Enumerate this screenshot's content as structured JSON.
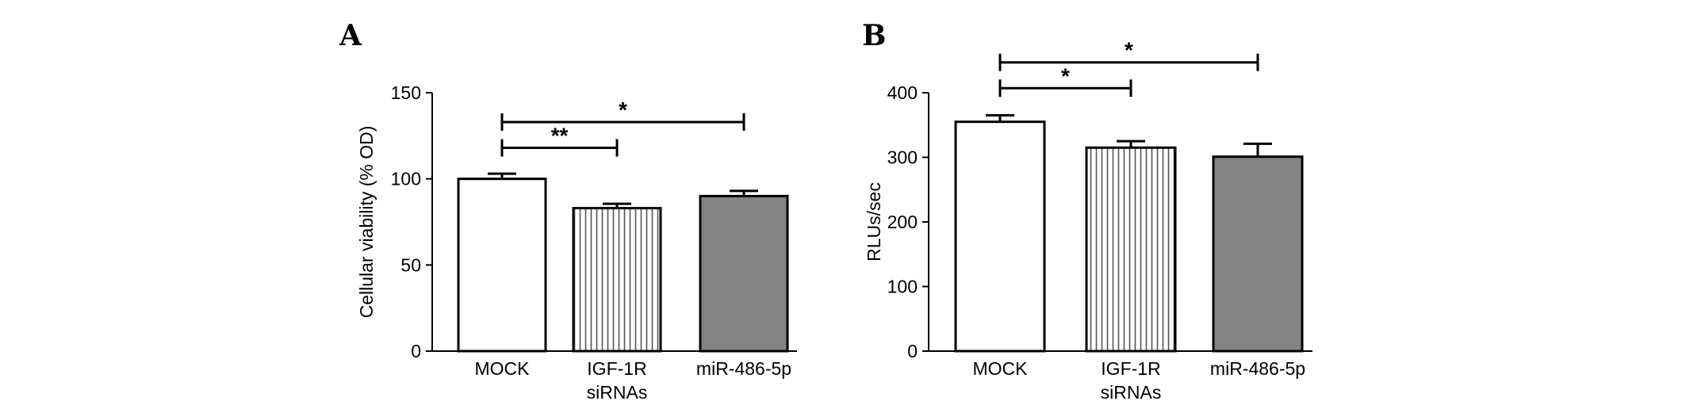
{
  "chart_data": [
    {
      "type": "bar",
      "panel": "A",
      "ylabel": "Cellular viability (% OD)",
      "xlabel": "",
      "ylim": [
        0,
        150
      ],
      "yticks": [
        "0",
        "50",
        "100",
        "150"
      ],
      "categories": [
        [
          "MOCK"
        ],
        [
          "IGF-1R",
          "siRNAs"
        ],
        [
          "miR-486-5p"
        ]
      ],
      "series": [
        {
          "values": [
            100,
            83,
            90
          ],
          "errors": [
            3,
            2.5,
            3
          ]
        }
      ],
      "fills": [
        "white",
        "striped",
        "gray"
      ],
      "significance": [
        {
          "from": 0,
          "to": 1,
          "label": "**",
          "y": 118
        },
        {
          "from": 0,
          "to": 2,
          "label": "*",
          "y": 133
        }
      ]
    },
    {
      "type": "bar",
      "panel": "B",
      "ylabel": "RLUs/sec",
      "xlabel": "",
      "ylim": [
        0,
        400
      ],
      "yticks": [
        "0",
        "100",
        "200",
        "300",
        "400"
      ],
      "categories": [
        [
          "MOCK"
        ],
        [
          "IGF-1R",
          "siRNAs"
        ],
        [
          "miR-486-5p"
        ]
      ],
      "series": [
        {
          "values": [
            355,
            315,
            301
          ],
          "errors": [
            10,
            10,
            20
          ]
        }
      ],
      "fills": [
        "white",
        "striped",
        "gray"
      ],
      "significance": [
        {
          "from": 0,
          "to": 1,
          "label": "*",
          "y": 407
        },
        {
          "from": 0,
          "to": 2,
          "label": "*",
          "y": 447
        }
      ]
    }
  ],
  "colors": {
    "gray_bar": "#838383",
    "stroke": "#000000",
    "stripe": "#555555"
  }
}
